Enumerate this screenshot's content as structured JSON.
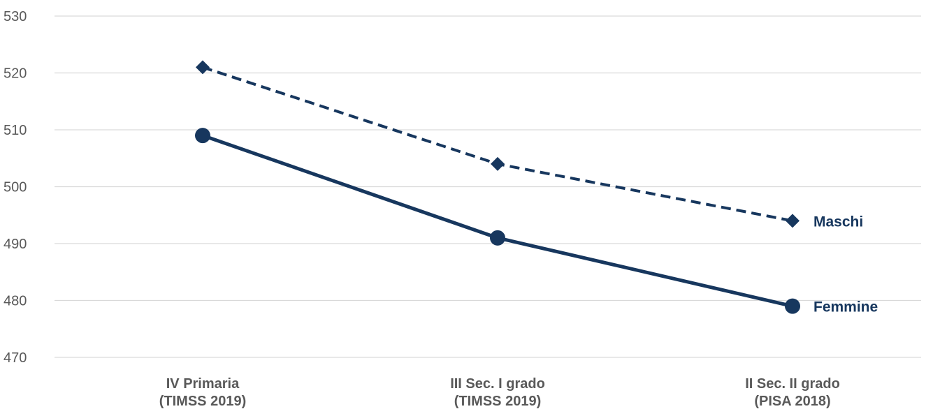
{
  "chart_data": {
    "type": "line",
    "categories": [
      [
        "IV Primaria",
        "(TIMSS 2019)"
      ],
      [
        "III Sec. I grado",
        "(TIMSS 2019)"
      ],
      [
        "II Sec. II grado",
        "(PISA 2018)"
      ]
    ],
    "ylim": [
      470,
      530
    ],
    "yticks": [
      470,
      480,
      490,
      500,
      510,
      520,
      530
    ],
    "grid": true,
    "series": [
      {
        "name": "Maschi",
        "values": [
          521,
          504,
          494
        ],
        "line_style": "dashed",
        "marker": "diamond",
        "color": "#17375e"
      },
      {
        "name": "Femmine",
        "values": [
          509,
          491,
          479
        ],
        "line_style": "solid",
        "marker": "circle",
        "color": "#17375e"
      }
    ]
  }
}
